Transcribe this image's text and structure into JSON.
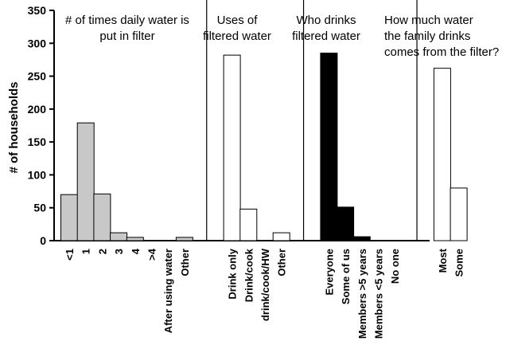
{
  "chart_data": {
    "type": "bar",
    "y_label": "# of households",
    "ylim": [
      0,
      350
    ],
    "yticks": [
      0,
      50,
      100,
      150,
      200,
      250,
      300,
      350
    ],
    "panels": [
      {
        "title": [
          "# of times daily water is",
          "put in filter"
        ],
        "color": "#c8c8c8",
        "categories": [
          "<1",
          "1",
          "2",
          "3",
          "4",
          ">4",
          "After using water",
          "Other"
        ],
        "values": [
          70,
          179,
          71,
          12,
          5,
          0,
          0,
          5
        ]
      },
      {
        "title": [
          "Uses of",
          "filtered water"
        ],
        "color": "#ffffff",
        "categories": [
          "Drink only",
          "Drink/cook",
          "drink/cook/HW",
          "Other"
        ],
        "values": [
          282,
          48,
          0,
          12
        ]
      },
      {
        "title": [
          "Who drinks",
          "filtered water"
        ],
        "color": "#000000",
        "categories": [
          "Everyone",
          "Some of us",
          "Members >5 years",
          "Members <5 years",
          "No one"
        ],
        "values": [
          285,
          51,
          6,
          0,
          0
        ]
      },
      {
        "title": [
          "How much water",
          "the family drinks",
          "comes from the filter?"
        ],
        "color": "#ffffff",
        "categories": [
          "Most",
          "Some"
        ],
        "values": [
          262,
          80
        ]
      }
    ]
  }
}
